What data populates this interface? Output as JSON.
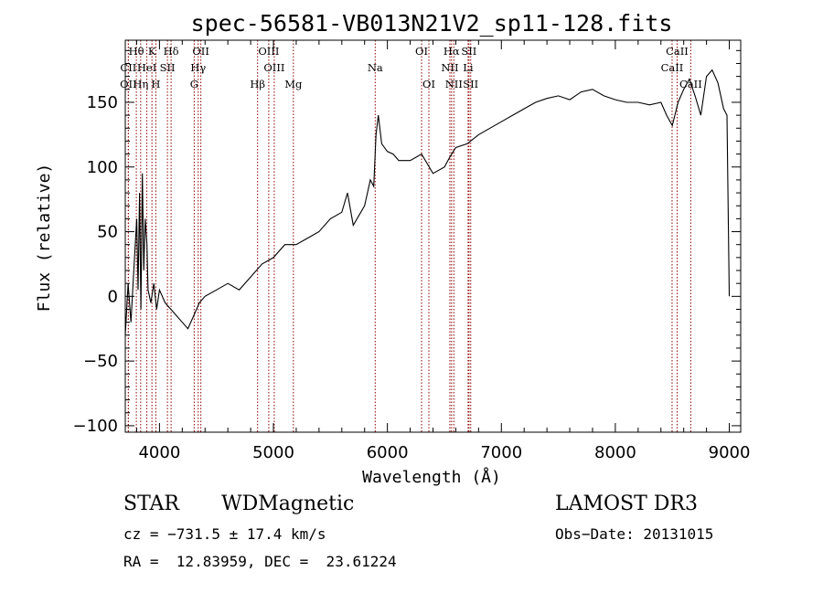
{
  "chart_data": {
    "type": "line",
    "title": "spec-56581-VB013N21V2_sp11-128.fits",
    "xlabel": "Wavelength (Å)",
    "ylabel": "Flux (relative)",
    "xlim": [
      3700,
      9100
    ],
    "ylim": [
      -105,
      198
    ],
    "x_ticks": [
      4000,
      5000,
      6000,
      7000,
      8000,
      9000
    ],
    "y_ticks": [
      -100,
      -50,
      0,
      50,
      100,
      150
    ],
    "series": [
      {
        "name": "flux",
        "x": [
          3700,
          3725,
          3750,
          3775,
          3800,
          3812,
          3825,
          3837,
          3850,
          3862,
          3875,
          3890,
          3900,
          3925,
          3950,
          3975,
          4000,
          4050,
          4100,
          4150,
          4200,
          4250,
          4300,
          4350,
          4400,
          4500,
          4600,
          4700,
          4800,
          4900,
          5000,
          5100,
          5200,
          5300,
          5400,
          5500,
          5600,
          5650,
          5700,
          5800,
          5850,
          5880,
          5900,
          5920,
          5950,
          6000,
          6050,
          6100,
          6200,
          6300,
          6400,
          6500,
          6550,
          6600,
          6700,
          6800,
          6900,
          7000,
          7100,
          7200,
          7300,
          7400,
          7500,
          7600,
          7700,
          7800,
          7900,
          8000,
          8100,
          8200,
          8300,
          8400,
          8450,
          8500,
          8550,
          8600,
          8650,
          8700,
          8750,
          8800,
          8850,
          8900,
          8950,
          8980,
          9000
        ],
        "y": [
          -30,
          10,
          -20,
          20,
          60,
          5,
          80,
          -10,
          95,
          20,
          60,
          40,
          5,
          -5,
          10,
          -10,
          5,
          -5,
          -10,
          -15,
          -20,
          -25,
          -15,
          -5,
          0,
          5,
          10,
          5,
          15,
          25,
          30,
          40,
          40,
          45,
          50,
          60,
          65,
          80,
          55,
          70,
          90,
          85,
          125,
          140,
          118,
          112,
          110,
          105,
          105,
          110,
          95,
          100,
          108,
          115,
          118,
          125,
          130,
          135,
          140,
          145,
          150,
          153,
          155,
          152,
          158,
          160,
          155,
          152,
          150,
          150,
          148,
          150,
          140,
          132,
          150,
          160,
          168,
          155,
          140,
          170,
          175,
          165,
          145,
          140,
          0
        ]
      }
    ],
    "spectral_lines": [
      {
        "label": "Hθ",
        "row": 0,
        "wave": 3797
      },
      {
        "label": "K",
        "row": 0,
        "wave": 3934
      },
      {
        "label": "Hδ",
        "row": 0,
        "wave": 4102
      },
      {
        "label": "OII",
        "row": 0,
        "wave": 4363
      },
      {
        "label": "OIII",
        "row": 0,
        "wave": 4959
      },
      {
        "label": "OI",
        "row": 0,
        "wave": 6300
      },
      {
        "label": "Hα",
        "row": 0,
        "wave": 6563
      },
      {
        "label": "SII",
        "row": 0,
        "wave": 6716
      },
      {
        "label": "CaII",
        "row": 0,
        "wave": 8542
      },
      {
        "label": "CII",
        "row": 1,
        "wave": 3727
      },
      {
        "label": "HeI",
        "row": 1,
        "wave": 3889
      },
      {
        "label": "SII",
        "row": 1,
        "wave": 4070
      },
      {
        "label": "Hγ",
        "row": 1,
        "wave": 4340
      },
      {
        "label": "OIII",
        "row": 1,
        "wave": 5007
      },
      {
        "label": "Na",
        "row": 1,
        "wave": 5893
      },
      {
        "label": "NII",
        "row": 1,
        "wave": 6548
      },
      {
        "label": "Li",
        "row": 1,
        "wave": 6708
      },
      {
        "label": "CaII",
        "row": 1,
        "wave": 8498
      },
      {
        "label": "OII",
        "row": 2,
        "wave": 3727
      },
      {
        "label": "Hη",
        "row": 2,
        "wave": 3835
      },
      {
        "label": "H",
        "row": 2,
        "wave": 3968
      },
      {
        "label": "G",
        "row": 2,
        "wave": 4305
      },
      {
        "label": "Hβ",
        "row": 2,
        "wave": 4861
      },
      {
        "label": "Mg",
        "row": 2,
        "wave": 5175
      },
      {
        "label": "OI",
        "row": 2,
        "wave": 6364
      },
      {
        "label": "NII",
        "row": 2,
        "wave": 6583
      },
      {
        "label": "SII",
        "row": 2,
        "wave": 6731
      },
      {
        "label": "CaII",
        "row": 2,
        "wave": 8662
      }
    ],
    "line_color": "#8b0000"
  },
  "info": {
    "object_type": "STAR",
    "subclass": "WDMagnetic",
    "survey": "LAMOST DR3",
    "cz": "cz = −731.5 ± 17.4 km/s",
    "obs_date": "Obs−Date: 20131015",
    "coords": "RA =  12.83959, DEC =  23.61224"
  }
}
